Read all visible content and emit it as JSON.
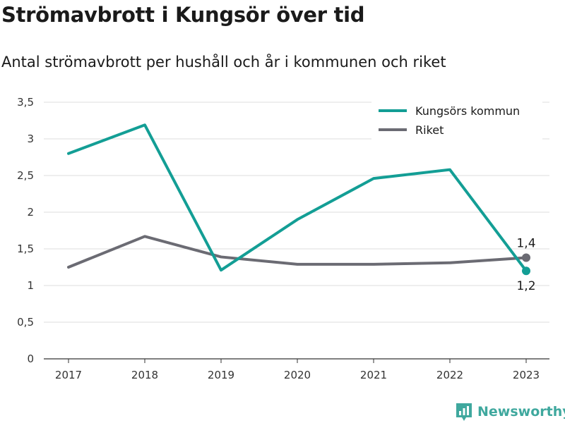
{
  "header": {
    "title": "Strömavbrott i Kungsör över tid",
    "subtitle": "Antal strömavbrott per hushåll och år i kommunen och riket"
  },
  "brand": {
    "name": "Newsworthy",
    "color": "#3fa89e"
  },
  "chart_data": {
    "type": "line",
    "x": [
      "2017",
      "2018",
      "2019",
      "2020",
      "2021",
      "2022",
      "2023"
    ],
    "ylim": [
      0,
      3.5
    ],
    "yticks": [
      0,
      0.5,
      1,
      1.5,
      2,
      2.5,
      3,
      3.5
    ],
    "ytick_labels": [
      "0",
      "0,5",
      "1",
      "1,5",
      "2",
      "2,5",
      "3",
      "3,5"
    ],
    "grid": true,
    "legend_position": "top-right",
    "series": [
      {
        "name": "Kungsörs kommun",
        "color": "#139e95",
        "values": [
          2.8,
          3.19,
          1.21,
          1.9,
          2.46,
          2.58,
          1.2
        ],
        "end_label": "1,2"
      },
      {
        "name": "Riket",
        "color": "#6b6b73",
        "values": [
          1.25,
          1.67,
          1.39,
          1.29,
          1.29,
          1.31,
          1.38
        ],
        "end_label": "1,4"
      }
    ]
  }
}
